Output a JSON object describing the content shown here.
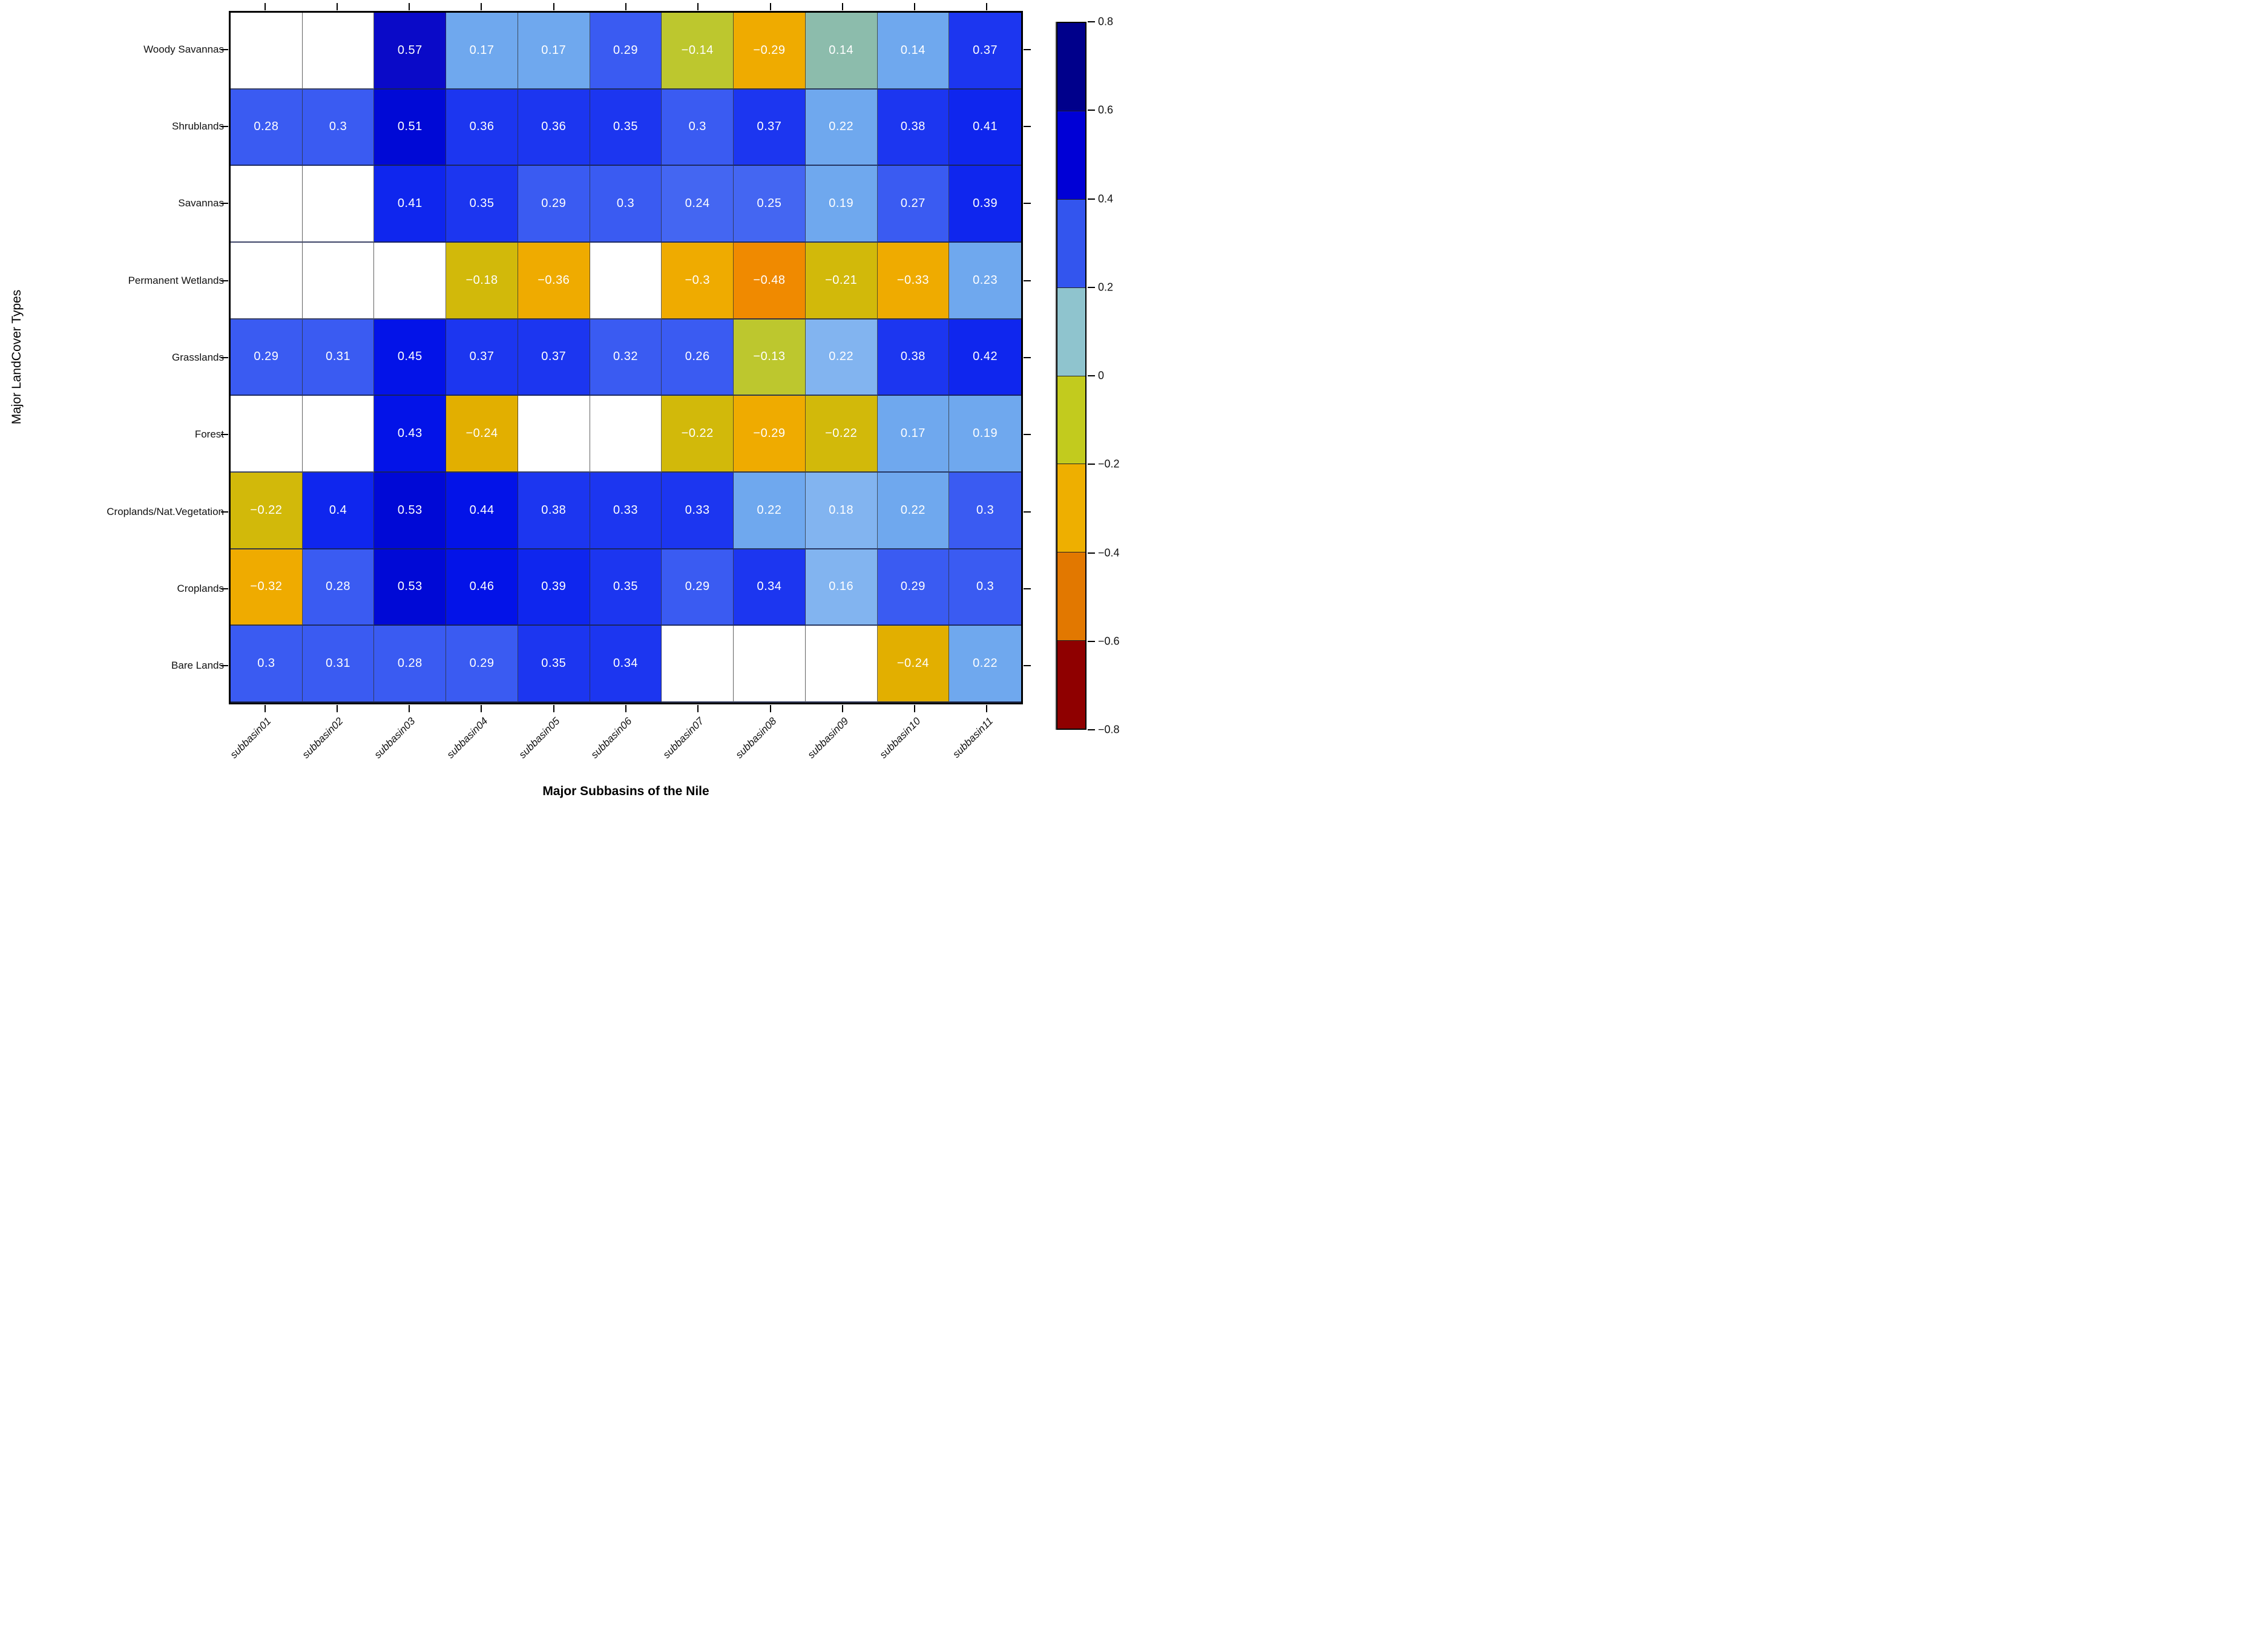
{
  "chart_data": {
    "type": "heatmap",
    "xlabel": "Major Subbasins of the Nile",
    "ylabel": "Major LandCover Types",
    "x_categories": [
      "subbasin01",
      "subbasin02",
      "subbasin03",
      "subbasin04",
      "subbasin05",
      "subbasin06",
      "subbasin07",
      "subbasin08",
      "subbasin09",
      "subbasin10",
      "subbasin11"
    ],
    "y_categories": [
      "Woody Savannas",
      "Shrublands",
      "Savannas",
      "Permanent Wetlands",
      "Grasslands",
      "Forest",
      "Croplands/Nat.Vegetation",
      "Croplands",
      "Bare Lands"
    ],
    "palette": {
      "navy": "#0a0ac8",
      "blue2": "#0009d6",
      "blue3": "#0313e8",
      "blue4": "#0f26ee",
      "blue5": "#1c36f0",
      "royal": "#3a5bf2",
      "royal2": "#4466f2",
      "corn": "#6fa8ee",
      "corn2": "#82b4f0",
      "teal": "#8cbcac",
      "yg": "#bdc72e",
      "ygold": "#d2b90a",
      "gold": "#e2af00",
      "amber": "#efab00",
      "orange": "#f08a00"
    },
    "cells": [
      [
        null,
        null,
        {
          "v": 0.57,
          "c": "navy"
        },
        {
          "v": 0.17,
          "c": "corn"
        },
        {
          "v": 0.17,
          "c": "corn"
        },
        {
          "v": 0.29,
          "c": "royal"
        },
        {
          "v": -0.14,
          "c": "yg"
        },
        {
          "v": -0.29,
          "c": "amber"
        },
        {
          "v": 0.14,
          "c": "teal"
        },
        {
          "v": 0.14,
          "c": "corn"
        },
        {
          "v": 0.37,
          "c": "blue5"
        }
      ],
      [
        {
          "v": 0.28,
          "c": "royal"
        },
        {
          "v": 0.3,
          "c": "royal"
        },
        {
          "v": 0.51,
          "c": "blue2"
        },
        {
          "v": 0.36,
          "c": "blue5"
        },
        {
          "v": 0.36,
          "c": "blue5"
        },
        {
          "v": 0.35,
          "c": "blue5"
        },
        {
          "v": 0.3,
          "c": "royal"
        },
        {
          "v": 0.37,
          "c": "blue5"
        },
        {
          "v": 0.22,
          "c": "corn"
        },
        {
          "v": 0.38,
          "c": "blue5"
        },
        {
          "v": 0.41,
          "c": "blue4"
        }
      ],
      [
        null,
        null,
        {
          "v": 0.41,
          "c": "blue4"
        },
        {
          "v": 0.35,
          "c": "blue5"
        },
        {
          "v": 0.29,
          "c": "royal"
        },
        {
          "v": 0.3,
          "c": "royal"
        },
        {
          "v": 0.24,
          "c": "royal2"
        },
        {
          "v": 0.25,
          "c": "royal2"
        },
        {
          "v": 0.19,
          "c": "corn"
        },
        {
          "v": 0.27,
          "c": "royal"
        },
        {
          "v": 0.39,
          "c": "blue4"
        }
      ],
      [
        null,
        null,
        null,
        {
          "v": -0.18,
          "c": "ygold"
        },
        {
          "v": -0.36,
          "c": "amber"
        },
        null,
        {
          "v": -0.3,
          "c": "amber"
        },
        {
          "v": -0.48,
          "c": "orange"
        },
        {
          "v": -0.21,
          "c": "ygold"
        },
        {
          "v": -0.33,
          "c": "amber"
        },
        {
          "v": 0.23,
          "c": "corn"
        }
      ],
      [
        {
          "v": 0.29,
          "c": "royal"
        },
        {
          "v": 0.31,
          "c": "royal"
        },
        {
          "v": 0.45,
          "c": "blue3"
        },
        {
          "v": 0.37,
          "c": "blue5"
        },
        {
          "v": 0.37,
          "c": "blue5"
        },
        {
          "v": 0.32,
          "c": "royal"
        },
        {
          "v": 0.26,
          "c": "royal"
        },
        {
          "v": -0.13,
          "c": "yg"
        },
        {
          "v": 0.22,
          "c": "corn2"
        },
        {
          "v": 0.38,
          "c": "blue5"
        },
        {
          "v": 0.42,
          "c": "blue4"
        }
      ],
      [
        null,
        null,
        {
          "v": 0.43,
          "c": "blue3"
        },
        {
          "v": -0.24,
          "c": "gold"
        },
        null,
        null,
        {
          "v": -0.22,
          "c": "ygold"
        },
        {
          "v": -0.29,
          "c": "amber"
        },
        {
          "v": -0.22,
          "c": "ygold"
        },
        {
          "v": 0.17,
          "c": "corn"
        },
        {
          "v": 0.19,
          "c": "corn"
        }
      ],
      [
        {
          "v": -0.22,
          "c": "ygold"
        },
        {
          "v": 0.4,
          "c": "blue4"
        },
        {
          "v": 0.53,
          "c": "blue2"
        },
        {
          "v": 0.44,
          "c": "blue3"
        },
        {
          "v": 0.38,
          "c": "blue5"
        },
        {
          "v": 0.33,
          "c": "blue5"
        },
        {
          "v": 0.33,
          "c": "blue5"
        },
        {
          "v": 0.22,
          "c": "corn"
        },
        {
          "v": 0.18,
          "c": "corn2"
        },
        {
          "v": 0.22,
          "c": "corn"
        },
        {
          "v": 0.3,
          "c": "royal"
        }
      ],
      [
        {
          "v": -0.32,
          "c": "amber"
        },
        {
          "v": 0.28,
          "c": "royal"
        },
        {
          "v": 0.53,
          "c": "blue2"
        },
        {
          "v": 0.46,
          "c": "blue3"
        },
        {
          "v": 0.39,
          "c": "blue4"
        },
        {
          "v": 0.35,
          "c": "blue5"
        },
        {
          "v": 0.29,
          "c": "royal"
        },
        {
          "v": 0.34,
          "c": "blue5"
        },
        {
          "v": 0.16,
          "c": "corn2"
        },
        {
          "v": 0.29,
          "c": "royal"
        },
        {
          "v": 0.3,
          "c": "royal"
        }
      ],
      [
        {
          "v": 0.3,
          "c": "royal"
        },
        {
          "v": 0.31,
          "c": "royal"
        },
        {
          "v": 0.28,
          "c": "royal"
        },
        {
          "v": 0.29,
          "c": "royal"
        },
        {
          "v": 0.35,
          "c": "blue5"
        },
        {
          "v": 0.34,
          "c": "blue5"
        },
        null,
        null,
        null,
        {
          "v": -0.24,
          "c": "gold"
        },
        {
          "v": 0.22,
          "c": "corn"
        }
      ]
    ],
    "colorbar": {
      "range": [
        -0.8,
        0.8
      ],
      "tick_labels": [
        "0.8",
        "0.6",
        "0.4",
        "0.2",
        "0",
        "−0.2",
        "−0.4",
        "−0.6",
        "−0.8"
      ],
      "band_colors_top_to_bottom": [
        "#00008b",
        "#0000d6",
        "#3355ee",
        "#8fc4ce",
        "#c2cb1e",
        "#eeaf00",
        "#e27800",
        "#8f0000"
      ]
    }
  }
}
